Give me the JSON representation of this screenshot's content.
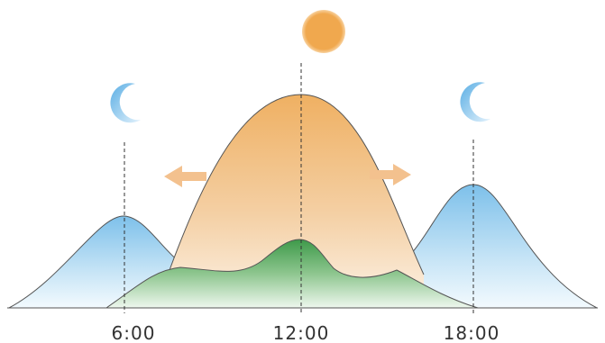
{
  "time_labels": {
    "morning": "6:00",
    "noon": "12:00",
    "evening": "18:00"
  },
  "icons": {
    "morning": "moon-icon",
    "noon": "sun-icon",
    "evening": "moon-icon",
    "left_arrow": "arrow-left-icon",
    "right_arrow": "arrow-right-icon"
  },
  "colors": {
    "sun": "#F0A84E",
    "moon": "#6FB6E6",
    "warm_peak": "#F2B367",
    "cool_peak": "#8CC8EC",
    "green_peak": "#3E9A4A",
    "arrow": "#F3C18E"
  }
}
